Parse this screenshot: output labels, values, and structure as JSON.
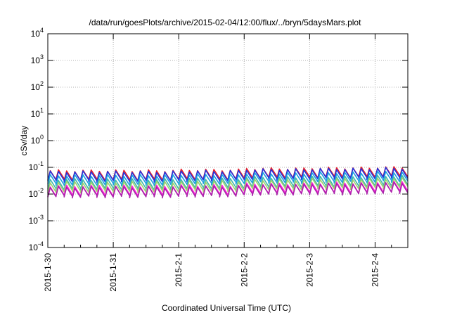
{
  "chart_data": {
    "type": "line",
    "title": "/data/run/goesPlots/archive/2015-02-04/12:00/flux/../bryn/5daysMars.plot",
    "xlabel": "Coordinated Universal Time (UTC)",
    "ylabel": "cSv/day",
    "y_scale": "log",
    "ylim": [
      0.0001,
      10000
    ],
    "y_ticks": [
      {
        "base": "10",
        "exp": "4"
      },
      {
        "base": "10",
        "exp": "3"
      },
      {
        "base": "10",
        "exp": "2"
      },
      {
        "base": "10",
        "exp": "1"
      },
      {
        "base": "10",
        "exp": "0"
      },
      {
        "base": "10",
        "exp": "-1"
      },
      {
        "base": "10",
        "exp": "-2"
      },
      {
        "base": "10",
        "exp": "-3"
      },
      {
        "base": "10",
        "exp": "-4"
      }
    ],
    "x_ticks": [
      "2015-1-30",
      "2015-1-31",
      "2015-2-1",
      "2015-2-2",
      "2015-2-3",
      "2015-2-4"
    ],
    "xlim": [
      "2015-01-30 00:00",
      "2015-02-04 12:00"
    ],
    "grid": "dotted",
    "legend": "none",
    "cycle_hours": 3,
    "series": [
      {
        "color": "#e8202a",
        "peak": [
          0.075,
          0.075,
          0.08,
          0.09,
          0.095,
          0.1
        ],
        "trough": [
          0.033,
          0.033,
          0.035,
          0.04,
          0.042,
          0.045
        ]
      },
      {
        "color": "#2233dd",
        "peak": [
          0.068,
          0.068,
          0.072,
          0.082,
          0.087,
          0.092
        ],
        "trough": [
          0.03,
          0.03,
          0.032,
          0.036,
          0.038,
          0.04
        ]
      },
      {
        "color": "#1aa0e0",
        "peak": [
          0.05,
          0.05,
          0.053,
          0.06,
          0.063,
          0.067
        ],
        "trough": [
          0.022,
          0.022,
          0.024,
          0.027,
          0.028,
          0.03
        ]
      },
      {
        "color": "#40b8a8",
        "peak": [
          0.035,
          0.035,
          0.037,
          0.042,
          0.044,
          0.047
        ],
        "trough": [
          0.015,
          0.015,
          0.016,
          0.018,
          0.019,
          0.02
        ]
      },
      {
        "color": "#a0d070",
        "peak": [
          0.028,
          0.028,
          0.03,
          0.034,
          0.036,
          0.038
        ],
        "trough": [
          0.012,
          0.012,
          0.013,
          0.015,
          0.016,
          0.017
        ]
      },
      {
        "color": "#ff22dd",
        "peak": [
          0.02,
          0.02,
          0.021,
          0.024,
          0.026,
          0.028
        ],
        "trough": [
          0.0085,
          0.0085,
          0.009,
          0.0105,
          0.011,
          0.012
        ]
      },
      {
        "color": "#aa22aa",
        "peak": [
          0.018,
          0.018,
          0.019,
          0.022,
          0.024,
          0.026
        ],
        "trough": [
          0.0078,
          0.0078,
          0.0083,
          0.0095,
          0.01,
          0.011
        ]
      }
    ]
  }
}
